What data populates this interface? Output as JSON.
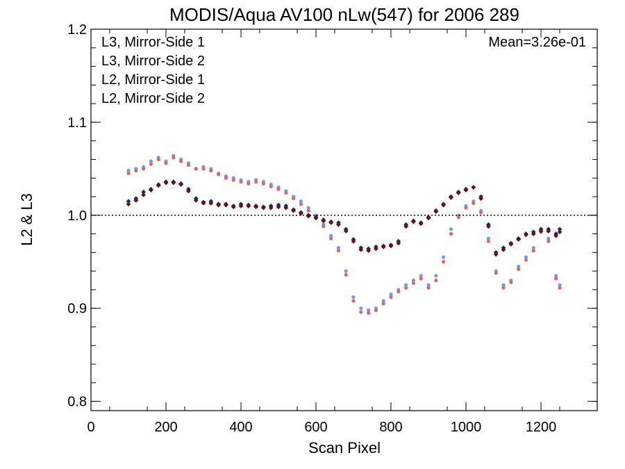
{
  "chart_data": {
    "type": "scatter",
    "title": "MODIS/Aqua AV100 nLw(547) for 2006 289",
    "xlabel": "Scan Pixel",
    "ylabel": "L2 & L3",
    "xlim": [
      0,
      1350
    ],
    "ylim": [
      0.79,
      1.2
    ],
    "x_ticks": [
      "0",
      "200",
      "400",
      "600",
      "800",
      "1000",
      "1200"
    ],
    "y_ticks": [
      "0.8",
      "0.9",
      "1.0",
      "1.1",
      "1.2"
    ],
    "reference_line": 1.0,
    "annotation": "Mean=3.26e-01",
    "annotation_color": "#d9686b",
    "legend_position": "top-left",
    "series": [
      {
        "name": "L3, Mirror-Side 1",
        "color": "#0d2f6b",
        "marker": "diamond",
        "points": [
          [
            100,
            1.015
          ],
          [
            120,
            1.018
          ],
          [
            140,
            1.025
          ],
          [
            160,
            1.028
          ],
          [
            180,
            1.033
          ],
          [
            200,
            1.036
          ],
          [
            220,
            1.036
          ],
          [
            240,
            1.034
          ],
          [
            260,
            1.028
          ],
          [
            280,
            1.018
          ],
          [
            300,
            1.014
          ],
          [
            320,
            1.015
          ],
          [
            340,
            1.012
          ],
          [
            360,
            1.012
          ],
          [
            380,
            1.01
          ],
          [
            400,
            1.012
          ],
          [
            420,
            1.011
          ],
          [
            440,
            1.01
          ],
          [
            460,
            1.009
          ],
          [
            480,
            1.01
          ],
          [
            500,
            1.011
          ],
          [
            520,
            1.01
          ],
          [
            540,
            1.006
          ],
          [
            560,
            1.003
          ],
          [
            580,
            1.0
          ],
          [
            600,
            0.998
          ],
          [
            620,
            0.995
          ],
          [
            640,
            0.993
          ],
          [
            660,
            0.992
          ],
          [
            680,
            0.985
          ],
          [
            700,
            0.974
          ],
          [
            720,
            0.965
          ],
          [
            740,
            0.964
          ],
          [
            760,
            0.966
          ],
          [
            780,
            0.967
          ],
          [
            800,
            0.968
          ],
          [
            820,
            0.972
          ],
          [
            840,
            0.99
          ],
          [
            860,
            0.994
          ],
          [
            880,
            0.992
          ],
          [
            900,
            0.998
          ],
          [
            920,
            1.005
          ],
          [
            940,
            1.012
          ],
          [
            960,
            1.02
          ],
          [
            980,
            1.025
          ],
          [
            1000,
            1.028
          ],
          [
            1020,
            1.03
          ],
          [
            1040,
            1.02
          ],
          [
            1060,
            0.99
          ],
          [
            1080,
            0.96
          ],
          [
            1100,
            0.965
          ],
          [
            1120,
            0.97
          ],
          [
            1140,
            0.975
          ],
          [
            1160,
            0.98
          ],
          [
            1180,
            0.982
          ],
          [
            1200,
            0.985
          ],
          [
            1220,
            0.985
          ],
          [
            1240,
            0.98
          ],
          [
            1250,
            0.985
          ]
        ]
      },
      {
        "name": "L3, Mirror-Side 2",
        "color": "#6e0e13",
        "marker": "diamond",
        "points": [
          [
            100,
            1.012
          ],
          [
            120,
            1.016
          ],
          [
            140,
            1.022
          ],
          [
            160,
            1.027
          ],
          [
            180,
            1.032
          ],
          [
            200,
            1.035
          ],
          [
            220,
            1.035
          ],
          [
            240,
            1.033
          ],
          [
            260,
            1.026
          ],
          [
            280,
            1.016
          ],
          [
            300,
            1.013
          ],
          [
            320,
            1.013
          ],
          [
            340,
            1.011
          ],
          [
            360,
            1.011
          ],
          [
            380,
            1.009
          ],
          [
            400,
            1.01
          ],
          [
            420,
            1.01
          ],
          [
            440,
            1.009
          ],
          [
            460,
            1.008
          ],
          [
            480,
            1.008
          ],
          [
            500,
            1.009
          ],
          [
            520,
            1.008
          ],
          [
            540,
            1.005
          ],
          [
            560,
            1.002
          ],
          [
            580,
            0.999
          ],
          [
            600,
            0.997
          ],
          [
            620,
            0.994
          ],
          [
            640,
            0.992
          ],
          [
            660,
            0.99
          ],
          [
            680,
            0.983
          ],
          [
            700,
            0.972
          ],
          [
            720,
            0.963
          ],
          [
            740,
            0.962
          ],
          [
            760,
            0.964
          ],
          [
            780,
            0.966
          ],
          [
            800,
            0.967
          ],
          [
            820,
            0.97
          ],
          [
            840,
            0.988
          ],
          [
            860,
            0.993
          ],
          [
            880,
            0.991
          ],
          [
            900,
            0.997
          ],
          [
            920,
            1.004
          ],
          [
            940,
            1.011
          ],
          [
            960,
            1.019
          ],
          [
            980,
            1.024
          ],
          [
            1000,
            1.027
          ],
          [
            1020,
            1.03
          ],
          [
            1040,
            1.018
          ],
          [
            1060,
            0.988
          ],
          [
            1080,
            0.958
          ],
          [
            1100,
            0.963
          ],
          [
            1120,
            0.969
          ],
          [
            1140,
            0.974
          ],
          [
            1160,
            0.979
          ],
          [
            1180,
            0.98
          ],
          [
            1200,
            0.983
          ],
          [
            1220,
            0.983
          ],
          [
            1240,
            0.978
          ],
          [
            1250,
            0.982
          ]
        ]
      },
      {
        "name": "L2, Mirror-Side 1",
        "color": "#6f9be8",
        "marker": "circle",
        "points": [
          [
            100,
            1.048
          ],
          [
            120,
            1.05
          ],
          [
            140,
            1.052
          ],
          [
            160,
            1.058
          ],
          [
            180,
            1.062
          ],
          [
            200,
            1.058
          ],
          [
            220,
            1.064
          ],
          [
            240,
            1.06
          ],
          [
            260,
            1.056
          ],
          [
            280,
            1.05
          ],
          [
            300,
            1.052
          ],
          [
            320,
            1.05
          ],
          [
            340,
            1.045
          ],
          [
            360,
            1.042
          ],
          [
            380,
            1.04
          ],
          [
            400,
            1.038
          ],
          [
            420,
            1.036
          ],
          [
            440,
            1.038
          ],
          [
            460,
            1.036
          ],
          [
            480,
            1.033
          ],
          [
            500,
            1.03
          ],
          [
            520,
            1.026
          ],
          [
            540,
            1.02
          ],
          [
            560,
            1.015
          ],
          [
            580,
            1.008
          ],
          [
            600,
            1.0
          ],
          [
            620,
            0.99
          ],
          [
            640,
            0.978
          ],
          [
            660,
            0.965
          ],
          [
            680,
            0.94
          ],
          [
            700,
            0.912
          ],
          [
            720,
            0.9
          ],
          [
            740,
            0.898
          ],
          [
            760,
            0.9
          ],
          [
            780,
            0.908
          ],
          [
            800,
            0.915
          ],
          [
            820,
            0.92
          ],
          [
            840,
            0.925
          ],
          [
            860,
            0.93
          ],
          [
            880,
            0.935
          ],
          [
            900,
            0.925
          ],
          [
            920,
            0.935
          ],
          [
            940,
            0.955
          ],
          [
            960,
            0.985
          ],
          [
            980,
            1.0
          ],
          [
            1000,
            1.01
          ],
          [
            1020,
            1.015
          ],
          [
            1040,
            1.005
          ],
          [
            1060,
            0.975
          ],
          [
            1080,
            0.94
          ],
          [
            1100,
            0.925
          ],
          [
            1120,
            0.93
          ],
          [
            1140,
            0.945
          ],
          [
            1160,
            0.955
          ],
          [
            1180,
            0.965
          ],
          [
            1200,
            0.985
          ],
          [
            1220,
            0.975
          ],
          [
            1240,
            0.935
          ],
          [
            1250,
            0.925
          ]
        ]
      },
      {
        "name": "L2, Mirror-Side 2",
        "color": "#d9686b",
        "marker": "circle",
        "points": [
          [
            100,
            1.045
          ],
          [
            120,
            1.048
          ],
          [
            140,
            1.05
          ],
          [
            160,
            1.055
          ],
          [
            180,
            1.06
          ],
          [
            200,
            1.056
          ],
          [
            220,
            1.062
          ],
          [
            240,
            1.058
          ],
          [
            260,
            1.054
          ],
          [
            280,
            1.05
          ],
          [
            300,
            1.05
          ],
          [
            320,
            1.048
          ],
          [
            340,
            1.044
          ],
          [
            360,
            1.04
          ],
          [
            380,
            1.038
          ],
          [
            400,
            1.036
          ],
          [
            420,
            1.034
          ],
          [
            440,
            1.036
          ],
          [
            460,
            1.034
          ],
          [
            480,
            1.031
          ],
          [
            500,
            1.028
          ],
          [
            520,
            1.024
          ],
          [
            540,
            1.018
          ],
          [
            560,
            1.012
          ],
          [
            580,
            1.005
          ],
          [
            600,
            0.998
          ],
          [
            620,
            0.988
          ],
          [
            640,
            0.975
          ],
          [
            660,
            0.962
          ],
          [
            680,
            0.936
          ],
          [
            700,
            0.908
          ],
          [
            720,
            0.896
          ],
          [
            740,
            0.895
          ],
          [
            760,
            0.898
          ],
          [
            780,
            0.905
          ],
          [
            800,
            0.912
          ],
          [
            820,
            0.918
          ],
          [
            840,
            0.922
          ],
          [
            860,
            0.927
          ],
          [
            880,
            0.932
          ],
          [
            900,
            0.922
          ],
          [
            920,
            0.93
          ],
          [
            940,
            0.95
          ],
          [
            960,
            0.98
          ],
          [
            980,
            0.998
          ],
          [
            1000,
            1.008
          ],
          [
            1020,
            1.013
          ],
          [
            1040,
            1.003
          ],
          [
            1060,
            0.972
          ],
          [
            1080,
            0.938
          ],
          [
            1100,
            0.922
          ],
          [
            1120,
            0.928
          ],
          [
            1140,
            0.942
          ],
          [
            1160,
            0.952
          ],
          [
            1180,
            0.962
          ],
          [
            1200,
            0.982
          ],
          [
            1220,
            0.972
          ],
          [
            1240,
            0.932
          ],
          [
            1250,
            0.922
          ]
        ]
      }
    ]
  }
}
